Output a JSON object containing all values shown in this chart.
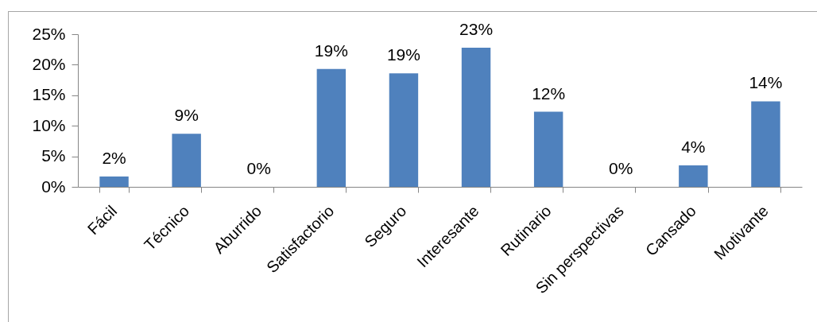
{
  "chart_data": {
    "type": "bar",
    "categories": [
      "Fácil",
      "Técnico",
      "Aburrido",
      "Satisfactorio",
      "Seguro",
      "Interesante",
      "Rutinario",
      "Sin perspectivas",
      "Cansado",
      "Motivante"
    ],
    "values": [
      1.7,
      8.7,
      0,
      19.3,
      18.6,
      22.8,
      12.3,
      0,
      3.5,
      14
    ],
    "color": "#4f81bd",
    "value_labels": [
      "2%",
      "9%",
      "0%",
      "19%",
      "19%",
      "23%",
      "12%",
      "0%",
      "4%",
      "14%"
    ],
    "ylim": [
      0,
      25
    ],
    "yticks": [
      {
        "value": 0,
        "label": "0%"
      },
      {
        "value": 5,
        "label": "5%"
      },
      {
        "value": 10,
        "label": "10%"
      },
      {
        "value": 15,
        "label": "15%"
      },
      {
        "value": 20,
        "label": "20%"
      },
      {
        "value": 25,
        "label": "25%"
      }
    ]
  }
}
